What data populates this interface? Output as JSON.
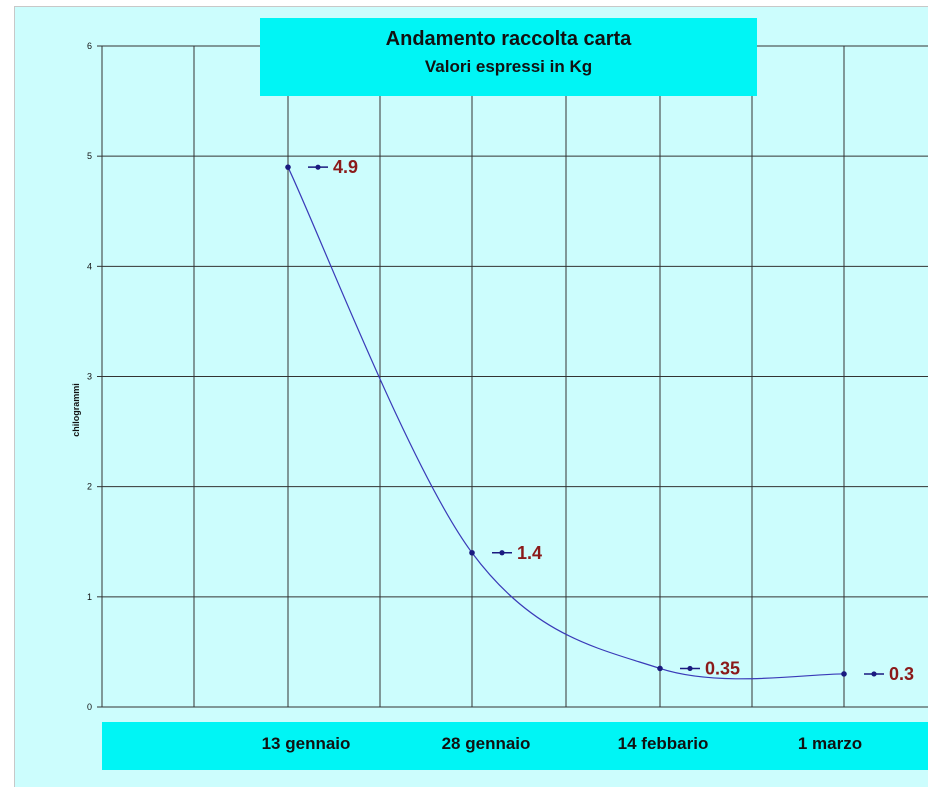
{
  "chart_data": {
    "type": "line",
    "title": "Andamento raccolta carta",
    "subtitle": "Valori espressi in Kg",
    "ylabel": "chilogrammi",
    "ylim": [
      0,
      6
    ],
    "yticks": [
      "0",
      "1",
      "2",
      "3",
      "4",
      "5",
      "6"
    ],
    "categories": [
      "13 gennaio",
      "28 gennaio",
      "14 febbario",
      "1 marzo"
    ],
    "values": [
      4.9,
      1.4,
      0.35,
      0.3
    ],
    "data_labels": [
      "4.9",
      "1.4",
      "0.35",
      "0.3"
    ],
    "grid": true,
    "colors": {
      "background": "#ccfdfd",
      "title_box": "#00f5f5",
      "line": "#3a3ab8",
      "marker": "#1a1a80",
      "data_label": "#8b1a1a",
      "grid": "#333333"
    }
  }
}
